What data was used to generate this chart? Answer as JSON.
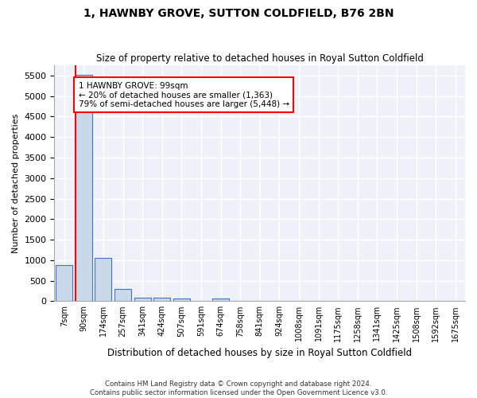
{
  "title1": "1, HAWNBY GROVE, SUTTON COLDFIELD, B76 2BN",
  "title2": "Size of property relative to detached houses in Royal Sutton Coldfield",
  "xlabel": "Distribution of detached houses by size in Royal Sutton Coldfield",
  "ylabel": "Number of detached properties",
  "footnote1": "Contains HM Land Registry data © Crown copyright and database right 2024.",
  "footnote2": "Contains public sector information licensed under the Open Government Licence v3.0.",
  "bins": [
    "7sqm",
    "90sqm",
    "174sqm",
    "257sqm",
    "341sqm",
    "424sqm",
    "507sqm",
    "591sqm",
    "674sqm",
    "758sqm",
    "841sqm",
    "924sqm",
    "1008sqm",
    "1091sqm",
    "1175sqm",
    "1258sqm",
    "1341sqm",
    "1425sqm",
    "1508sqm",
    "1592sqm",
    "1675sqm"
  ],
  "values": [
    870,
    5510,
    1055,
    300,
    90,
    80,
    70,
    0,
    60,
    0,
    0,
    0,
    0,
    0,
    0,
    0,
    0,
    0,
    0,
    0,
    0
  ],
  "bar_color": "#c9d9e8",
  "bar_edge_color": "#4472c4",
  "annotation_text1": "1 HAWNBY GROVE: 99sqm",
  "annotation_text2": "← 20% of detached houses are smaller (1,363)",
  "annotation_text3": "79% of semi-detached houses are larger (5,448) →",
  "annotation_box_color": "white",
  "annotation_border_color": "red",
  "property_line_color": "red",
  "ylim": [
    0,
    5750
  ],
  "yticks": [
    0,
    500,
    1000,
    1500,
    2000,
    2500,
    3000,
    3500,
    4000,
    4500,
    5000,
    5500
  ],
  "background_color": "#eef2f8"
}
